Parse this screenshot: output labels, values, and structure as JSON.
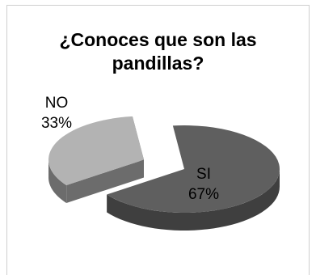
{
  "chart_data": {
    "type": "pie",
    "title_lines": [
      "¿Conoces que son las",
      "pandillas?"
    ],
    "slices": [
      {
        "label": "SI",
        "value": 67,
        "percent_label": "67%",
        "color": "#5f5f5f",
        "side_color": "#3f3f3f",
        "exploded": false
      },
      {
        "label": "NO",
        "value": 33,
        "percent_label": "33%",
        "color": "#b3b3b3",
        "side_color": "#6c6c6c",
        "exploded": true
      }
    ],
    "legend": "none",
    "style": "3d-exploded"
  }
}
